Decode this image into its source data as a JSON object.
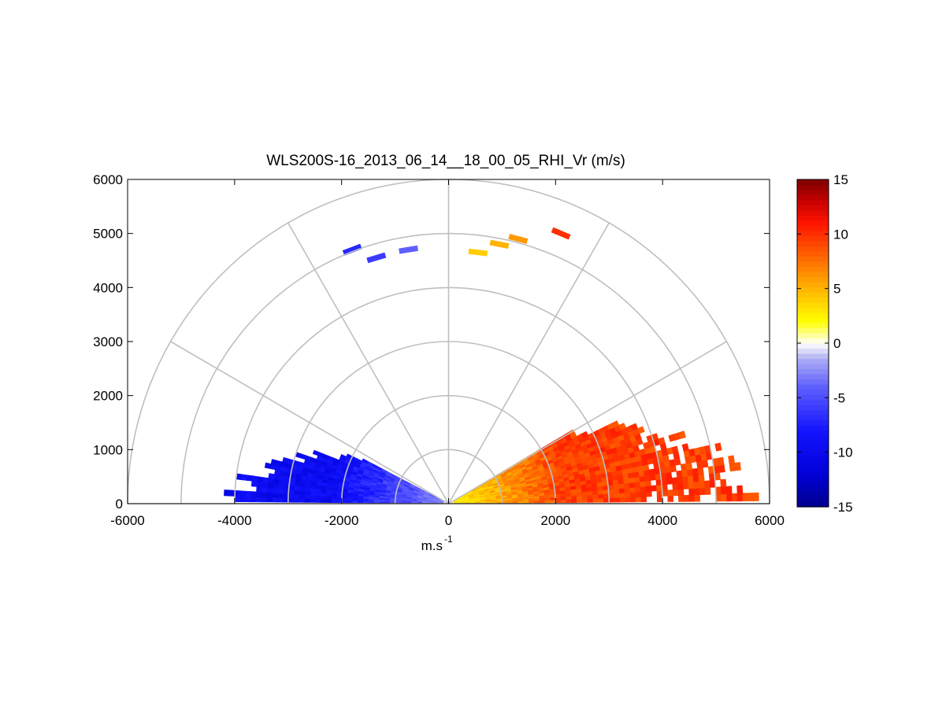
{
  "chart_data": {
    "type": "heatmap",
    "title": "WLS200S-16_2013_06_14__18_00_05_RHI_Vr (m/s)",
    "xlabel": "m.s",
    "xlabel_superscript": "-1",
    "ylabel": "",
    "xlim": [
      -6000,
      6000
    ],
    "ylim": [
      0,
      6000
    ],
    "x_ticks": [
      "-6000",
      "-4000",
      "-2000",
      "0",
      "2000",
      "4000",
      "6000"
    ],
    "y_ticks": [
      "0",
      "1000",
      "2000",
      "3000",
      "4000",
      "5000",
      "6000"
    ],
    "polar_grid": {
      "ring_ranges": [
        1000,
        2000,
        3000,
        4000,
        5000,
        6000
      ],
      "spoke_angles_deg": [
        0,
        30,
        60,
        90,
        120,
        150,
        180
      ]
    },
    "colorbar": {
      "range": [
        -15,
        15
      ],
      "ticks": [
        "15",
        "10",
        "5",
        "0",
        "-5",
        "-10",
        "-15"
      ],
      "colormap": "blue-white-yellow-red"
    },
    "series": [
      {
        "sector": "left (negative x)",
        "elevation_deg": [
          0,
          27
        ],
        "range_m": [
          0,
          4300
        ],
        "velocity_range_ms": [
          -11,
          -2
        ]
      },
      {
        "sector": "right (positive x)",
        "elevation_deg": [
          0,
          30
        ],
        "range_m": [
          0,
          6000
        ],
        "velocity_range_ms": [
          2,
          11
        ]
      }
    ],
    "high_altitude_returns": [
      {
        "x": -1800,
        "y": 4700,
        "v": -7
      },
      {
        "x": -1350,
        "y": 4550,
        "v": -6
      },
      {
        "x": -750,
        "y": 4700,
        "v": -4
      },
      {
        "x": 550,
        "y": 4650,
        "v": 4
      },
      {
        "x": 950,
        "y": 4800,
        "v": 5
      },
      {
        "x": 1300,
        "y": 4900,
        "v": 6
      },
      {
        "x": 2100,
        "y": 5000,
        "v": 10
      }
    ],
    "grid": true,
    "legend": "none"
  }
}
